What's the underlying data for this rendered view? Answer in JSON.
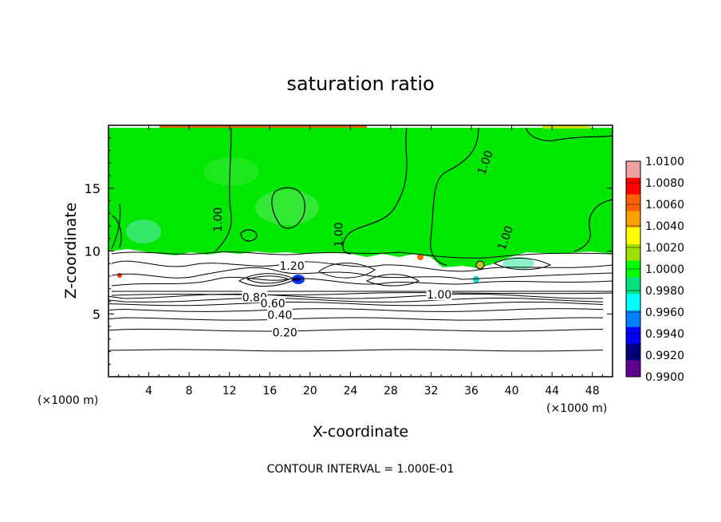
{
  "chart_data": {
    "type": "heatmap",
    "title": "saturation ratio",
    "xlabel": "X-coordinate",
    "ylabel": "Z-coordinate",
    "x_unit_left": "(×1000 m)",
    "x_unit_right": "(×1000 m)",
    "xlim": [
      0,
      50
    ],
    "ylim": [
      0,
      20
    ],
    "xticks": [
      4,
      8,
      12,
      16,
      20,
      24,
      28,
      32,
      36,
      40,
      44,
      48
    ],
    "yticks": [
      5,
      10,
      15
    ],
    "footer": "CONTOUR INTERVAL = 1.000E-01",
    "colorbar": {
      "levels": [
        "1.0100",
        "1.0080",
        "1.0060",
        "1.0040",
        "1.0020",
        "1.0000",
        "0.9980",
        "0.9960",
        "0.9940",
        "0.9920",
        "0.9900"
      ],
      "colors": [
        "#f0a0a0",
        "#ff0000",
        "#ff6000",
        "#ffa000",
        "#ffff00",
        "#a0e000",
        "#00ff00",
        "#00e080",
        "#00ffff",
        "#0080ff",
        "#0000ff",
        "#000080",
        "#600090"
      ]
    },
    "fields": {
      "green_region": {
        "z_from": 10,
        "z_to": 19.5,
        "value": 1.0
      },
      "white_cloud_layer": {
        "z_from": 6,
        "z_to": 10
      },
      "blue_spot": {
        "x": 19,
        "z": 7.7,
        "value": 0.994
      }
    },
    "contour_labels": [
      {
        "text": "1.00",
        "x": 11,
        "z": 12.5,
        "rot": -90
      },
      {
        "text": "1.00",
        "x": 23,
        "z": 11.3,
        "rot": -90
      },
      {
        "text": "1.00",
        "x": 37.5,
        "z": 17.0,
        "rot": -70
      },
      {
        "text": "1.00",
        "x": 39.5,
        "z": 11.0,
        "rot": -70
      },
      {
        "text": "1.20",
        "x": 18.2,
        "z": 8.7,
        "rot": 0
      },
      {
        "text": "0.80",
        "x": 14.5,
        "z": 6.2,
        "rot": 0
      },
      {
        "text": "0.60",
        "x": 16.3,
        "z": 5.7,
        "rot": 0
      },
      {
        "text": "0.40",
        "x": 17.0,
        "z": 4.8,
        "rot": 0
      },
      {
        "text": "0.20",
        "x": 17.5,
        "z": 3.4,
        "rot": 0
      },
      {
        "text": "1.00",
        "x": 32.8,
        "z": 6.4,
        "rot": 0
      }
    ],
    "horizontal_contours_z": [
      2.1,
      3.7,
      4.6,
      5.3,
      5.8,
      6.1,
      6.4
    ]
  }
}
